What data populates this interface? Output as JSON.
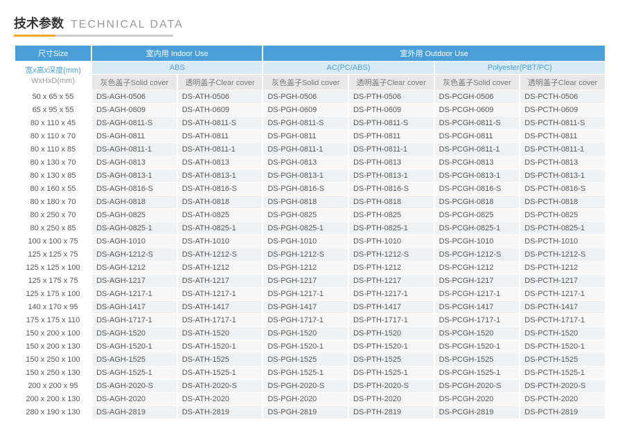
{
  "title": {
    "cn": "技术参数",
    "en": "TECHNICAL DATA"
  },
  "headers": {
    "size": "尺寸Size",
    "size_sub1": "宽x高x深度(mm)",
    "size_sub2": "WxHxD(mm)",
    "indoor": "室内用 Indoor Use",
    "outdoor": "室外用 Outdoor Use",
    "abs": "ABS",
    "acpc": "AC(PC/ABS)",
    "poly": "Polyester(PBT/PC)",
    "solid": "灰色盖子Solid cover",
    "clear": "透明盖子Clear cover"
  },
  "rows": [
    {
      "size": "50 x 65 x 55",
      "c": [
        "DS-AGH-0506",
        "DS-ATH-0506",
        "DS-PGH-0506",
        "DS-PTH-0506",
        "DS-PCGH-0506",
        "DS-PCTH-0506"
      ]
    },
    {
      "size": "65 x 95 x 55",
      "c": [
        "DS-AGH-0609",
        "DS-ATH-0609",
        "DS-PGH-0609",
        "DS-PTH-0609",
        "DS-PCGH-0609",
        "DS-PCTH-0609"
      ]
    },
    {
      "size": "80 x 110 x 45",
      "c": [
        "DS-AGH-0811-S",
        "DS-ATH-0811-S",
        "DS-PGH-0811-S",
        "DS-PTH-0811-S",
        "DS-PCGH-0811-S",
        "DS-PCTH-0811-S"
      ]
    },
    {
      "size": "80 x 110 x 70",
      "c": [
        "DS-AGH-0811",
        "DS-ATH-0811",
        "DS-PGH-0811",
        "DS-PTH-0811",
        "DS-PCGH-0811",
        "DS-PCTH-0811"
      ]
    },
    {
      "size": "80 x 110 x 85",
      "c": [
        "DS-AGH-0811-1",
        "DS-ATH-0811-1",
        "DS-PGH-0811-1",
        "DS-PTH-0811-1",
        "DS-PCGH-0811-1",
        "DS-PCTH-0811-1"
      ]
    },
    {
      "size": "80 x 130 x 70",
      "c": [
        "DS-AGH-0813",
        "DS-ATH-0813",
        "DS-PGH-0813",
        "DS-PTH-0813",
        "DS-PCGH-0813",
        "DS-PCTH-0813"
      ]
    },
    {
      "size": "80 x 130 x 85",
      "c": [
        "DS-AGH-0813-1",
        "DS-ATH-0813-1",
        "DS-PGH-0813-1",
        "DS-PTH-0813-1",
        "DS-PCGH-0813-1",
        "DS-PCTH-0813-1"
      ]
    },
    {
      "size": "80 x 160 x 55",
      "c": [
        "DS-AGH-0816-S",
        "DS-ATH-0816-S",
        "DS-PGH-0816-S",
        "DS-PTH-0816-S",
        "DS-PCGH-0816-S",
        "DS-PCTH-0816-S"
      ]
    },
    {
      "size": "80 x 180 x 70",
      "c": [
        "DS-AGH-0818",
        "DS-ATH-0818",
        "DS-PGH-0818",
        "DS-PTH-0818",
        "DS-PCGH-0818",
        "DS-PCTH-0818"
      ]
    },
    {
      "size": "80 x 250 x 70",
      "c": [
        "DS-AGH-0825",
        "DS-ATH-0825",
        "DS-PGH-0825",
        "DS-PTH-0825",
        "DS-PCGH-0825",
        "DS-PCTH-0825"
      ]
    },
    {
      "size": "80 x 250 x 85",
      "c": [
        "DS-AGH-0825-1",
        "DS-ATH-0825-1",
        "DS-PGH-0825-1",
        "DS-PTH-0825-1",
        "DS-PCGH-0825-1",
        "DS-PCTH-0825-1"
      ]
    },
    {
      "size": "100 x 100 x 75",
      "c": [
        "DS-AGH-1010",
        "DS-ATH-1010",
        "DS-PGH-1010",
        "DS-PTH-1010",
        "DS-PCGH-1010",
        "DS-PCTH-1010"
      ]
    },
    {
      "size": "125 x 125 x 75",
      "c": [
        "DS-AGH-1212-S",
        "DS-ATH-1212-S",
        "DS-PGH-1212-S",
        "DS-PTH-1212-S",
        "DS-PCGH-1212-S",
        "DS-PCTH-1212-S"
      ]
    },
    {
      "size": "125 x 125 x 100",
      "c": [
        "DS-AGH-1212",
        "DS-ATH-1212",
        "DS-PGH-1212",
        "DS-PTH-1212",
        "DS-PCGH-1212",
        "DS-PCTH-1212"
      ]
    },
    {
      "size": "125 x 175 x 75",
      "c": [
        "DS-AGH-1217",
        "DS-ATH-1217",
        "DS-PGH-1217",
        "DS-PTH-1217",
        "DS-PCGH-1217",
        "DS-PCTH-1217"
      ]
    },
    {
      "size": "125 x 175 x 100",
      "c": [
        "DS-AGH-1217-1",
        "DS-ATH-1217-1",
        "DS-PGH-1217-1",
        "DS-PTH-1217-1",
        "DS-PCGH-1217-1",
        "DS-PCTH-1217-1"
      ]
    },
    {
      "size": "140 x 170 x 95",
      "c": [
        "DS-AGH-1417",
        "DS-ATH-1417",
        "DS-PGH-1417",
        "DS-PTH-1417",
        "DS-PCGH-1417",
        "DS-PCTH-1417"
      ]
    },
    {
      "size": "175 x 175 x 110",
      "c": [
        "DS-AGH-1717-1",
        "DS-ATH-1717-1",
        "DS-PGH-1717-1",
        "DS-PTH-1717-1",
        "DS-PCGH-1717-1",
        "DS-PCTH-1717-1"
      ]
    },
    {
      "size": "150 x 200 x 100",
      "c": [
        "DS-AGH-1520",
        "DS-ATH-1520",
        "DS-PGH-1520",
        "DS-PTH-1520",
        "DS-PCGH-1520",
        "DS-PCTH-1520"
      ]
    },
    {
      "size": "150 x 200 x 130",
      "c": [
        "DS-AGH-1520-1",
        "DS-ATH-1520-1",
        "DS-PGH-1520-1",
        "DS-PTH-1520-1",
        "DS-PCGH-1520-1",
        "DS-PCTH-1520-1"
      ]
    },
    {
      "size": "150 x 250 x 100",
      "c": [
        "DS-AGH-1525",
        "DS-ATH-1525",
        "DS-PGH-1525",
        "DS-PTH-1525",
        "DS-PCGH-1525",
        "DS-PCTH-1525"
      ]
    },
    {
      "size": "150 x 250 x 130",
      "c": [
        "DS-AGH-1525-1",
        "DS-ATH-1525-1",
        "DS-PGH-1525-1",
        "DS-PTH-1525-1",
        "DS-PCGH-1525-1",
        "DS-PCTH-1525-1"
      ]
    },
    {
      "size": "200 x 200 x 95",
      "c": [
        "DS-AGH-2020-S",
        "DS-ATH-2020-S",
        "DS-PGH-2020-S",
        "DS-PTH-2020-S",
        "DS-PCGH-2020-S",
        "DS-PCTH-2020-S"
      ]
    },
    {
      "size": "200 x 200 x 130",
      "c": [
        "DS-AGH-2020",
        "DS-ATH-2020",
        "DS-PGH-2020",
        "DS-PTH-2020",
        "DS-PCGH-2020",
        "DS-PCTH-2020"
      ]
    },
    {
      "size": "280 x 190 x 130",
      "c": [
        "DS-AGH-2819",
        "DS-ATH-2819",
        "DS-PGH-2819",
        "DS-PTH-2819",
        "DS-PCGH-2819",
        "DS-PCTH-2819"
      ]
    }
  ]
}
